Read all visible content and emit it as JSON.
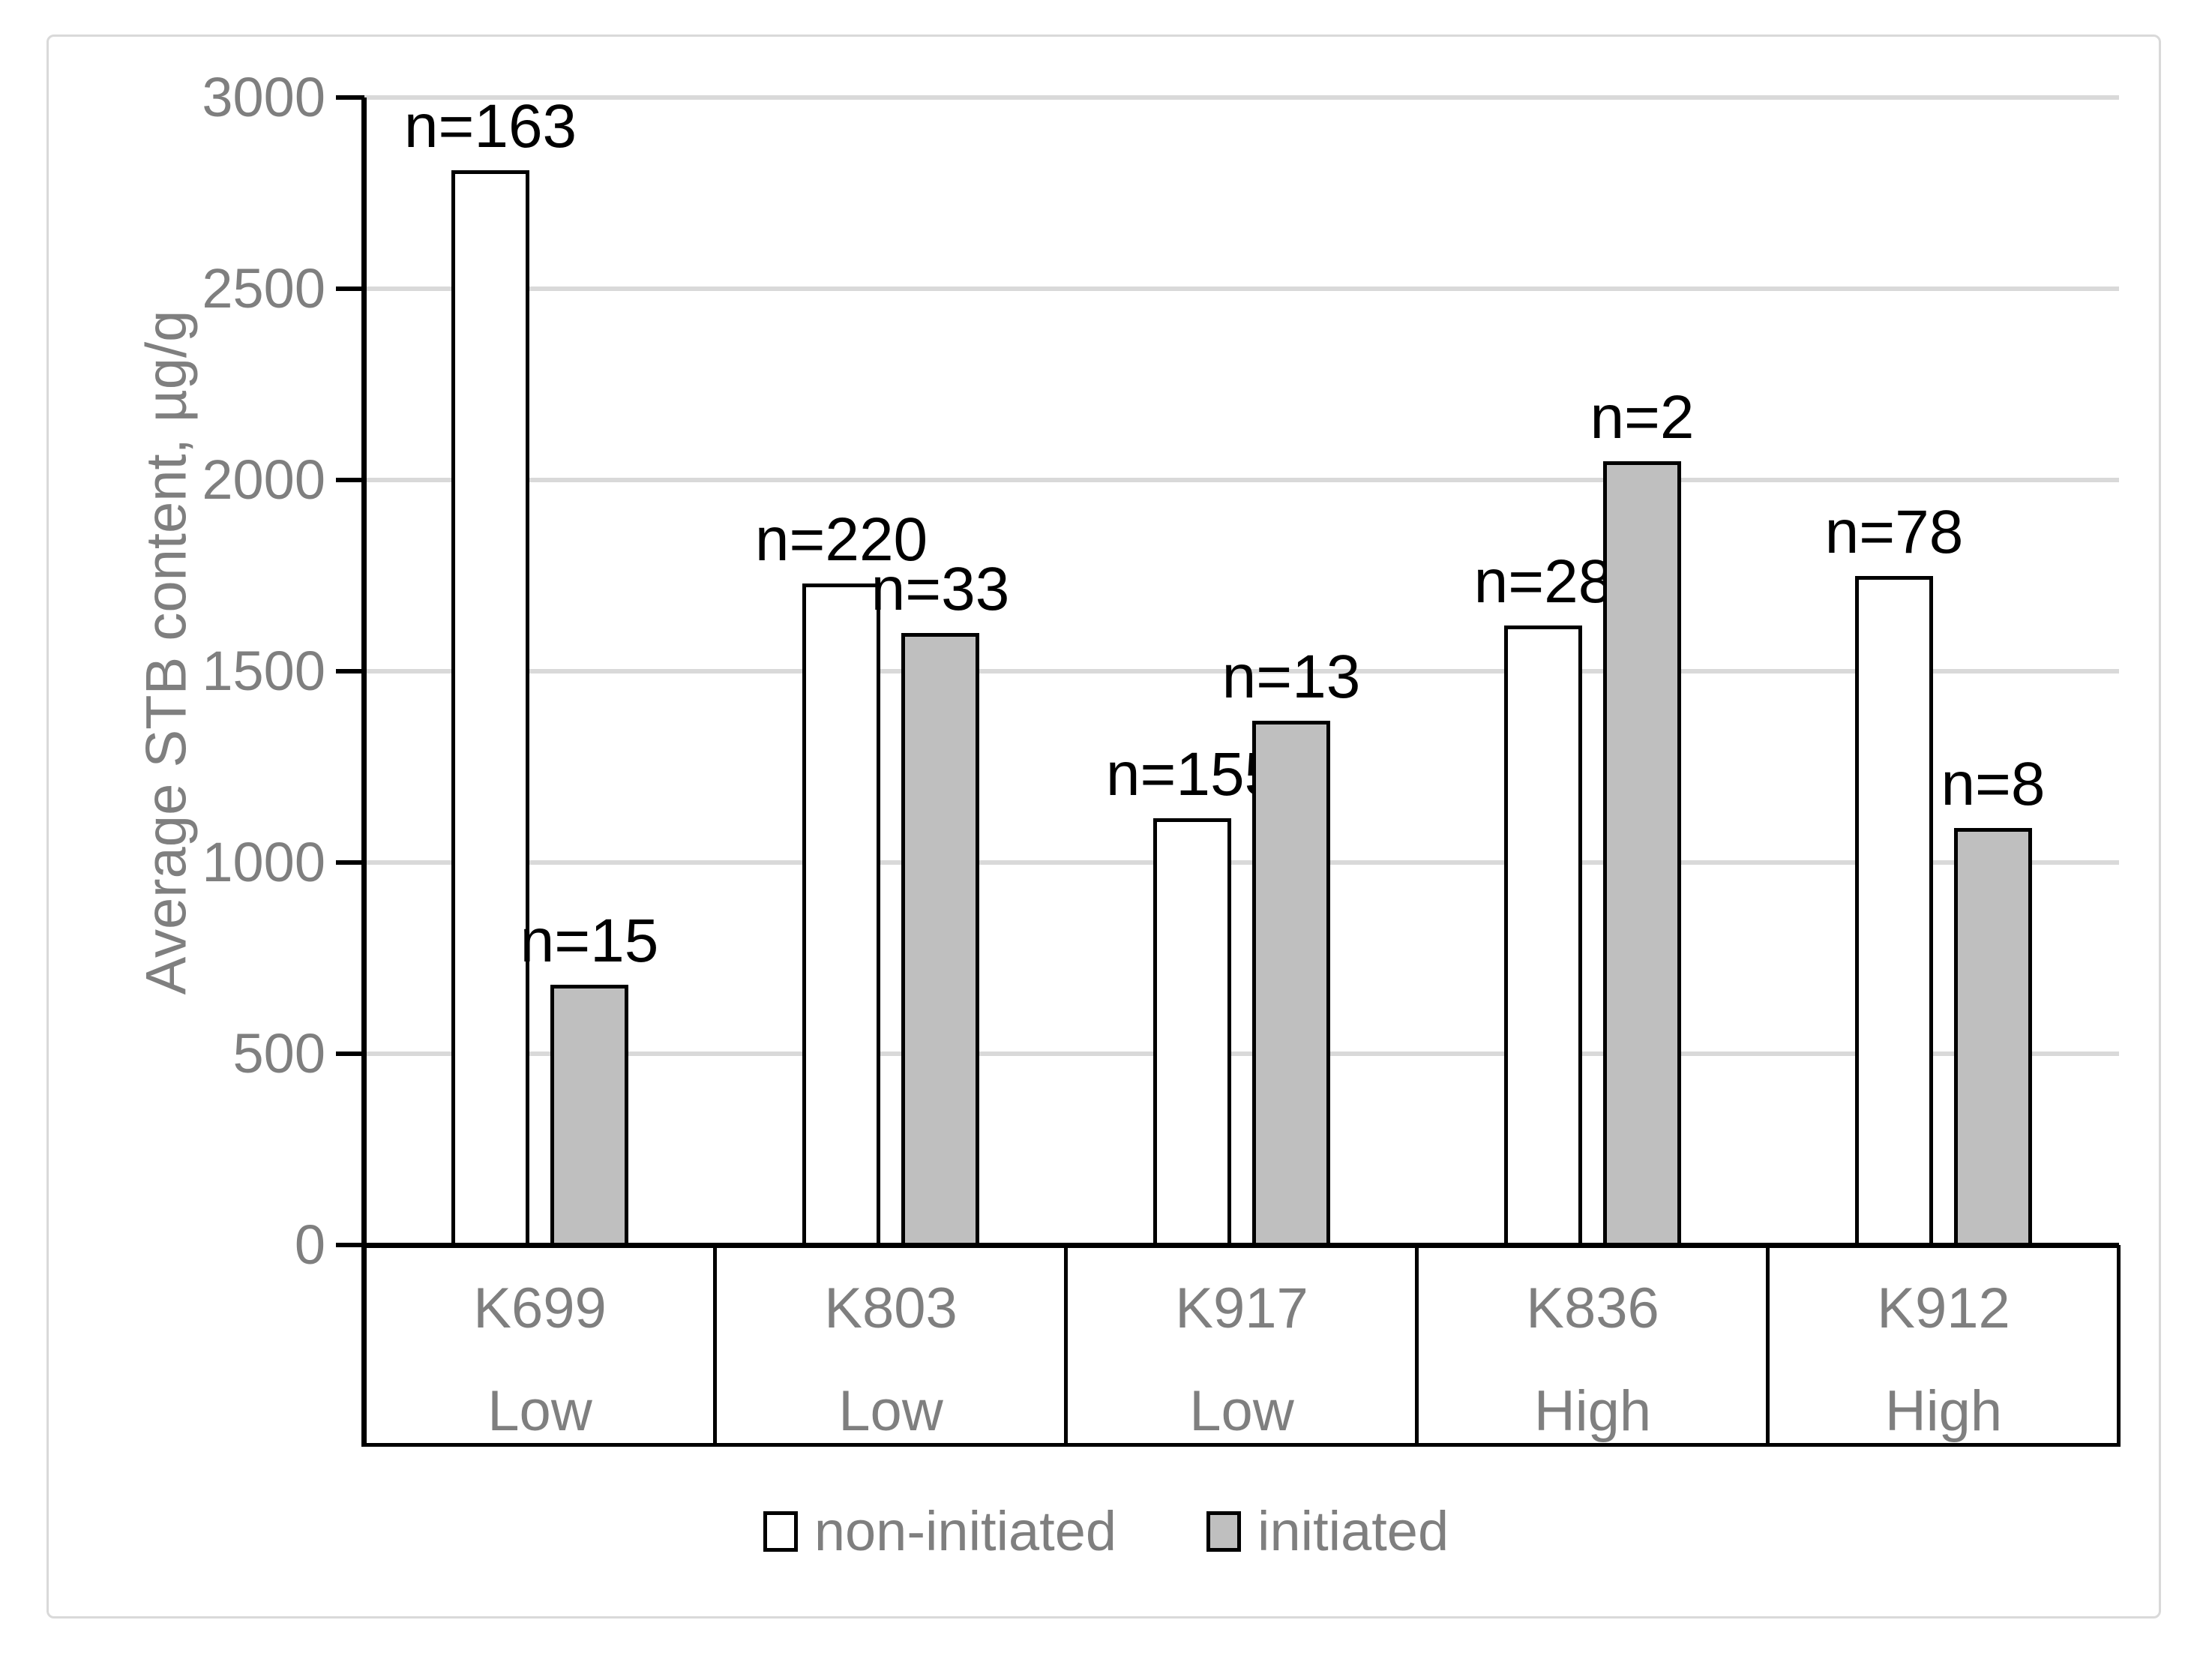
{
  "figure": {
    "background": "#ffffff",
    "border_color": "#d9d9d9"
  },
  "chart_data": {
    "type": "bar",
    "title": "",
    "xlabel": "",
    "ylabel": "Average STB content, µg/g",
    "ylim": [
      0,
      3000
    ],
    "ytick_interval": 500,
    "yticks": [
      "3000",
      "2500",
      "2000",
      "1500",
      "1000",
      "500",
      "0"
    ],
    "grid": true,
    "legend_position": "bottom",
    "categories": [
      {
        "code": "K699",
        "level": "Low"
      },
      {
        "code": "K803",
        "level": "Low"
      },
      {
        "code": "K917",
        "level": "Low"
      },
      {
        "code": "K836",
        "level": "High"
      },
      {
        "code": "K912",
        "level": "High"
      }
    ],
    "series": [
      {
        "name": "non-initiated",
        "fill": "#ffffff",
        "values": [
          2810,
          1730,
          1115,
          1620,
          1750
        ],
        "labels": [
          "n=163",
          "n=220",
          "n=155",
          "n=28",
          "n=78"
        ]
      },
      {
        "name": "initiated",
        "fill": "#bfbfbf",
        "values": [
          680,
          1600,
          1370,
          2050,
          1090
        ],
        "labels": [
          "n=15",
          "n=33",
          "n=13",
          "n=2",
          "n=8"
        ]
      }
    ],
    "colors": {
      "grid": "#d9d9d9",
      "axis": "#000000",
      "gray_text": "#7f7f7f",
      "data_label": "#000000",
      "initiated_fill": "#bfbfbf",
      "non_initiated_fill": "#ffffff"
    }
  }
}
